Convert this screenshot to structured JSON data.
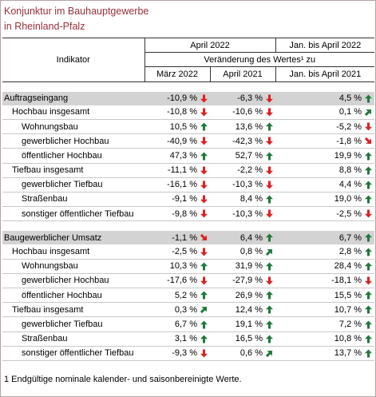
{
  "title_line1": "Konjunktur im Bauhauptgewerbe",
  "title_line2": "in Rheinland-Pfalz",
  "header": {
    "indikator": "Indikator",
    "april2022": "April 2022",
    "jan_april2022": "Jan. bis April 2022",
    "veraenderung": "Veränderung des Wertes¹ zu",
    "maerz2022": "März 2022",
    "april2021": "April 2021",
    "jan_april2021": "Jan. bis April 2021"
  },
  "colors": {
    "up": "#1f7a3a",
    "down": "#e02020",
    "title": "#9a2f3a"
  },
  "sections": [
    {
      "rows": [
        {
          "label": "Auftragseingang",
          "level": 0,
          "v1": "-10,9 %",
          "a1": "down",
          "v2": "-6,3 %",
          "a2": "down",
          "v3": "4,5 %",
          "a3": "up"
        },
        {
          "label": "Hochbau insgesamt",
          "level": 1,
          "v1": "-10,8 %",
          "a1": "down",
          "v2": "-10,6 %",
          "a2": "down",
          "v3": "0,1 %",
          "a3": "up-right"
        },
        {
          "label": "Wohnungsbau",
          "level": 2,
          "v1": "10,5 %",
          "a1": "up",
          "v2": "13,6 %",
          "a2": "up",
          "v3": "-5,2 %",
          "a3": "down"
        },
        {
          "label": "gewerblicher Hochbau",
          "level": 2,
          "v1": "-40,9 %",
          "a1": "down",
          "v2": "-42,3 %",
          "a2": "down",
          "v3": "-1,8 %",
          "a3": "down-right"
        },
        {
          "label": "öffentlicher Hochbau",
          "level": 2,
          "v1": "47,3 %",
          "a1": "up",
          "v2": "52,7 %",
          "a2": "up",
          "v3": "19,9 %",
          "a3": "up"
        },
        {
          "label": "Tiefbau insgesamt",
          "level": 1,
          "v1": "-11,1 %",
          "a1": "down",
          "v2": "-2,2 %",
          "a2": "down",
          "v3": "8,8 %",
          "a3": "up"
        },
        {
          "label": "gewerblicher Tiefbau",
          "level": 2,
          "v1": "-16,1 %",
          "a1": "down",
          "v2": "-10,3 %",
          "a2": "down",
          "v3": "4,4 %",
          "a3": "up"
        },
        {
          "label": "Straßenbau",
          "level": 2,
          "v1": "-9,1 %",
          "a1": "down",
          "v2": "8,4 %",
          "a2": "up",
          "v3": "19,0 %",
          "a3": "up"
        },
        {
          "label": "sonstiger öffentlicher Tiefbau",
          "level": 2,
          "v1": "-9,8 %",
          "a1": "down",
          "v2": "-10,3 %",
          "a2": "down",
          "v3": "-2,5 %",
          "a3": "down"
        }
      ]
    },
    {
      "rows": [
        {
          "label": "Baugewerblicher Umsatz",
          "level": 0,
          "v1": "-1,1 %",
          "a1": "down-right",
          "v2": "6,4 %",
          "a2": "up",
          "v3": "6,7 %",
          "a3": "up"
        },
        {
          "label": "Hochbau insgesamt",
          "level": 1,
          "v1": "-2,5 %",
          "a1": "down",
          "v2": "0,8 %",
          "a2": "up-right",
          "v3": "2,8 %",
          "a3": "up"
        },
        {
          "label": "Wohnungsbau",
          "level": 2,
          "v1": "10,3 %",
          "a1": "up",
          "v2": "31,9 %",
          "a2": "up",
          "v3": "28,4 %",
          "a3": "up"
        },
        {
          "label": "gewerblicher Hochbau",
          "level": 2,
          "v1": "-17,6 %",
          "a1": "down",
          "v2": "-27,9 %",
          "a2": "down",
          "v3": "-18,1 %",
          "a3": "down"
        },
        {
          "label": "öffentlicher Hochbau",
          "level": 2,
          "v1": "5,2 %",
          "a1": "up",
          "v2": "26,9 %",
          "a2": "up",
          "v3": "15,5 %",
          "a3": "up"
        },
        {
          "label": "Tiefbau insgesamt",
          "level": 1,
          "v1": "0,3 %",
          "a1": "up-right",
          "v2": "12,4 %",
          "a2": "up",
          "v3": "10,7 %",
          "a3": "up"
        },
        {
          "label": "gewerblicher Tiefbau",
          "level": 2,
          "v1": "6,7 %",
          "a1": "up",
          "v2": "19,1 %",
          "a2": "up",
          "v3": "7,2 %",
          "a3": "up"
        },
        {
          "label": "Straßenbau",
          "level": 2,
          "v1": "3,1 %",
          "a1": "up",
          "v2": "16,5 %",
          "a2": "up",
          "v3": "10,8 %",
          "a3": "up"
        },
        {
          "label": "sonstiger öffentlicher Tiefbau",
          "level": 2,
          "v1": "-9,3 %",
          "a1": "down",
          "v2": "0,6 %",
          "a2": "up-right",
          "v3": "13,7 %",
          "a3": "up"
        }
      ]
    }
  ],
  "footnote": "1 Endgültige nominale kalender- und saisonbereinigte Werte."
}
